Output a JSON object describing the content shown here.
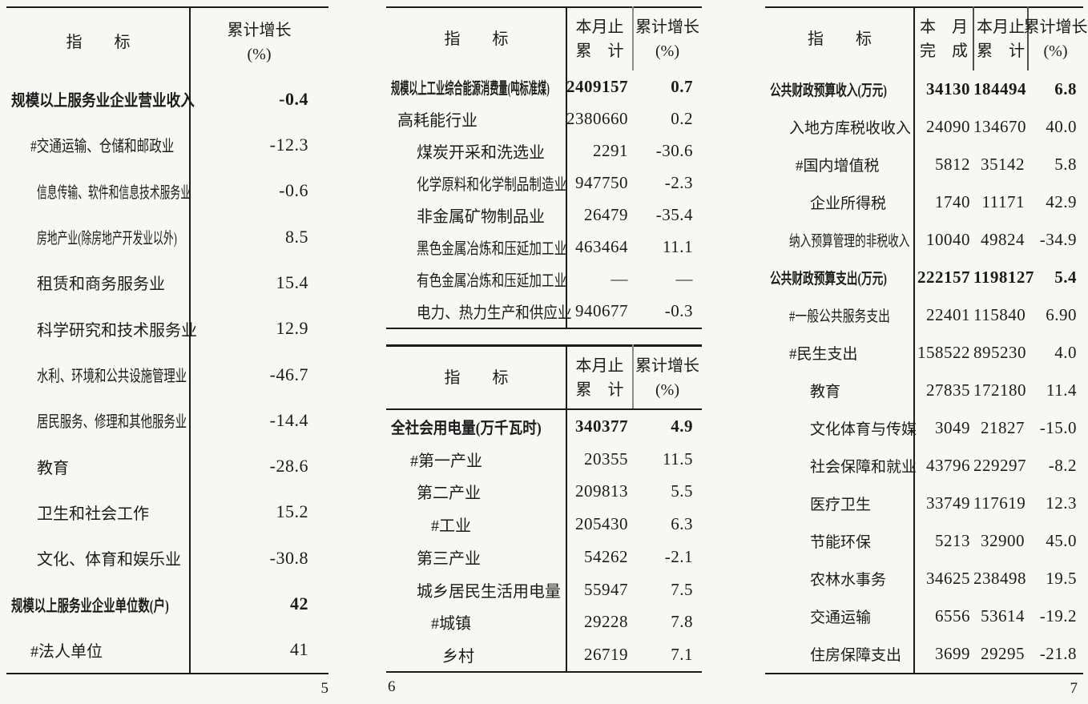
{
  "page5": {
    "page_number": "5",
    "header": {
      "indicator": "指　　标",
      "growth_line1": "累计增长",
      "growth_line2": "(%)"
    },
    "rows": [
      {
        "label": "规模以上服务业企业营业收入",
        "values": [
          "-0.4"
        ],
        "bold": true,
        "indent": 0,
        "narrow": 1
      },
      {
        "label": "#交通运输、仓储和邮政业",
        "values": [
          "-12.3"
        ],
        "bold": false,
        "indent": 2,
        "narrow": 2
      },
      {
        "label": "信息传输、软件和信息技术服务业",
        "values": [
          "-0.6"
        ],
        "bold": false,
        "indent": 3,
        "narrow": 4
      },
      {
        "label": "房地产业(除房地产开发业以外)",
        "values": [
          "8.5"
        ],
        "bold": false,
        "indent": 3,
        "narrow": 4
      },
      {
        "label": "租赁和商务服务业",
        "values": [
          "15.4"
        ],
        "bold": false,
        "indent": 3,
        "narrow": 0
      },
      {
        "label": "科学研究和技术服务业",
        "values": [
          "12.9"
        ],
        "bold": false,
        "indent": 3,
        "narrow": 0
      },
      {
        "label": "水利、环境和公共设施管理业",
        "values": [
          "-46.7"
        ],
        "bold": false,
        "indent": 3,
        "narrow": 3
      },
      {
        "label": "居民服务、修理和其他服务业",
        "values": [
          "-14.4"
        ],
        "bold": false,
        "indent": 3,
        "narrow": 3
      },
      {
        "label": "教育",
        "values": [
          "-28.6"
        ],
        "bold": false,
        "indent": 3,
        "narrow": 0
      },
      {
        "label": "卫生和社会工作",
        "values": [
          "15.2"
        ],
        "bold": false,
        "indent": 3,
        "narrow": 0
      },
      {
        "label": "文化、体育和娱乐业",
        "values": [
          "-30.8"
        ],
        "bold": false,
        "indent": 3,
        "narrow": 0
      },
      {
        "label": "规模以上服务业企业单位数(户)",
        "values": [
          "42"
        ],
        "bold": true,
        "indent": 0,
        "narrow": 3
      },
      {
        "label": "#法人单位",
        "values": [
          "41"
        ],
        "bold": false,
        "indent": 2,
        "narrow": 0
      }
    ]
  },
  "page6": {
    "page_number": "6",
    "tableA": {
      "header": {
        "indicator": "指　　标",
        "col1_line1": "本月止",
        "col1_line2": "累　计",
        "col2_line1": "累计增长",
        "col2_line2": "(%)"
      },
      "rows": [
        {
          "label": "规模以上工业综合能源消费量(吨标准煤)",
          "values": [
            "2409157",
            "0.7"
          ],
          "bold": true,
          "indent": 0,
          "narrow": 5
        },
        {
          "label": "高耗能行业",
          "values": [
            "2380660",
            "0.2"
          ],
          "bold": false,
          "indent": 1,
          "narrow": 0
        },
        {
          "label": "煤炭开采和洗选业",
          "values": [
            "2291",
            "-30.6"
          ],
          "bold": false,
          "indent": 3,
          "narrow": 0
        },
        {
          "label": "化学原料和化学制品制造业",
          "values": [
            "947750",
            "-2.3"
          ],
          "bold": false,
          "indent": 3,
          "narrow": 2
        },
        {
          "label": "非金属矿物制品业",
          "values": [
            "26479",
            "-35.4"
          ],
          "bold": false,
          "indent": 3,
          "narrow": 0
        },
        {
          "label": "黑色金属冶炼和压延加工业",
          "values": [
            "463464",
            "11.1"
          ],
          "bold": false,
          "indent": 3,
          "narrow": 2
        },
        {
          "label": "有色金属冶炼和压延加工业",
          "values": [
            "—",
            "—"
          ],
          "bold": false,
          "indent": 3,
          "narrow": 2
        },
        {
          "label": "电力、热力生产和供应业",
          "values": [
            "940677",
            "-0.3"
          ],
          "bold": false,
          "indent": 3,
          "narrow": 1
        }
      ]
    },
    "tableB": {
      "header": {
        "indicator": "指　　标",
        "col1_line1": "本月止",
        "col1_line2": "累　计",
        "col2_line1": "累计增长",
        "col2_line2": "(%)"
      },
      "rows": [
        {
          "label": "全社会用电量(万千瓦时)",
          "values": [
            "340377",
            "4.9"
          ],
          "bold": true,
          "indent": 0,
          "narrow": 1
        },
        {
          "label": "#第一产业",
          "values": [
            "20355",
            "11.5"
          ],
          "bold": false,
          "indent": 2,
          "narrow": 0
        },
        {
          "label": "第二产业",
          "values": [
            "209813",
            "5.5"
          ],
          "bold": false,
          "indent": 3,
          "narrow": 0
        },
        {
          "label": "#工业",
          "values": [
            "205430",
            "6.3"
          ],
          "bold": false,
          "indent": 4,
          "narrow": 0
        },
        {
          "label": "第三产业",
          "values": [
            "54262",
            "-2.1"
          ],
          "bold": false,
          "indent": 3,
          "narrow": 0
        },
        {
          "label": "城乡居民生活用电量",
          "values": [
            "55947",
            "7.5"
          ],
          "bold": false,
          "indent": 3,
          "narrow": 0
        },
        {
          "label": "#城镇",
          "values": [
            "29228",
            "7.8"
          ],
          "bold": false,
          "indent": 4,
          "narrow": 0
        },
        {
          "label": "乡村",
          "values": [
            "26719",
            "7.1"
          ],
          "bold": false,
          "indent": 5,
          "narrow": 0
        }
      ]
    }
  },
  "page7": {
    "page_number": "7",
    "header": {
      "indicator": "指　　标",
      "col1_line1": "本　月",
      "col1_line2": "完　成",
      "col2_line1": "本月止",
      "col2_line2": "累　计",
      "col3_line1": "累计增长",
      "col3_line2": "(%)"
    },
    "rows": [
      {
        "label": "公共财政预算收入(万元)",
        "values": [
          "34130",
          "184494",
          "6.8"
        ],
        "bold": true,
        "indent": 0,
        "narrow": 3
      },
      {
        "label": "入地方库税收收入",
        "values": [
          "24090",
          "134670",
          "40.0"
        ],
        "bold": false,
        "indent": 2,
        "narrow": 0
      },
      {
        "label": "#国内增值税",
        "values": [
          "5812",
          "35142",
          "5.8"
        ],
        "bold": false,
        "indent": 3,
        "narrow": 0
      },
      {
        "label": "企业所得税",
        "values": [
          "1740",
          "11171",
          "42.9"
        ],
        "bold": false,
        "indent": 4,
        "narrow": 0
      },
      {
        "label": "纳入预算管理的非税收入",
        "values": [
          "10040",
          "49824",
          "-34.9"
        ],
        "bold": false,
        "indent": 2,
        "narrow": 3
      },
      {
        "label": "公共财政预算支出(万元)",
        "values": [
          "222157",
          "1198127",
          "5.4"
        ],
        "bold": true,
        "indent": 0,
        "narrow": 3
      },
      {
        "label": "#一般公共服务支出",
        "values": [
          "22401",
          "115840",
          "6.90"
        ],
        "bold": false,
        "indent": 2,
        "narrow": 2
      },
      {
        "label": "#民生支出",
        "values": [
          "158522",
          "895230",
          "4.0"
        ],
        "bold": false,
        "indent": 2,
        "narrow": 0
      },
      {
        "label": "教育",
        "values": [
          "27835",
          "172180",
          "11.4"
        ],
        "bold": false,
        "indent": 4,
        "narrow": 0
      },
      {
        "label": "文化体育与传媒",
        "values": [
          "3049",
          "21827",
          "-15.0"
        ],
        "bold": false,
        "indent": 4,
        "narrow": 0
      },
      {
        "label": "社会保障和就业",
        "values": [
          "43796",
          "229297",
          "-8.2"
        ],
        "bold": false,
        "indent": 4,
        "narrow": 0
      },
      {
        "label": "医疗卫生",
        "values": [
          "33749",
          "117619",
          "12.3"
        ],
        "bold": false,
        "indent": 4,
        "narrow": 0
      },
      {
        "label": "节能环保",
        "values": [
          "5213",
          "32900",
          "45.0"
        ],
        "bold": false,
        "indent": 4,
        "narrow": 0
      },
      {
        "label": "农林水事务",
        "values": [
          "34625",
          "238498",
          "19.5"
        ],
        "bold": false,
        "indent": 4,
        "narrow": 0
      },
      {
        "label": "交通运输",
        "values": [
          "6556",
          "53614",
          "-19.2"
        ],
        "bold": false,
        "indent": 4,
        "narrow": 0
      },
      {
        "label": "住房保障支出",
        "values": [
          "3699",
          "29295",
          "-21.8"
        ],
        "bold": false,
        "indent": 4,
        "narrow": 0
      }
    ]
  },
  "colors": {
    "ink": "#1b1b1b",
    "paper": "#f7f7f4",
    "header_divider_gray": "#8a8a8a"
  }
}
